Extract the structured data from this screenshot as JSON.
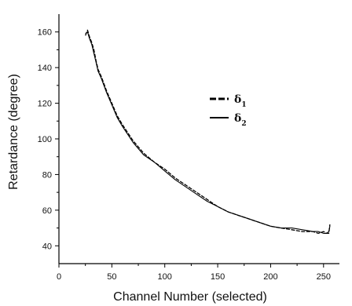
{
  "chart_data": {
    "type": "line",
    "title": "",
    "xlabel": "Channel Number (selected)",
    "ylabel": "Retardance (degree)",
    "xlim": [
      0,
      265
    ],
    "ylim": [
      30,
      170
    ],
    "xticks": [
      0,
      50,
      100,
      150,
      200,
      250
    ],
    "yticks": [
      40,
      60,
      80,
      100,
      120,
      140,
      160
    ],
    "grid": false,
    "legend_position": "upper-right",
    "series": [
      {
        "name": "δ1",
        "symbol": "δ",
        "subscript": "1",
        "style": "dashed",
        "x": [
          25,
          27,
          29,
          31,
          33,
          35,
          37,
          40,
          45,
          50,
          55,
          60,
          70,
          80,
          90,
          100,
          110,
          120,
          130,
          140,
          150,
          160,
          170,
          180,
          190,
          200,
          210,
          220,
          230,
          240,
          245,
          250,
          253,
          255,
          256
        ],
        "y": [
          158,
          161,
          157,
          154,
          150,
          144,
          139,
          135,
          127,
          120,
          113,
          108,
          99,
          92,
          87,
          83,
          78,
          74,
          70,
          66,
          62,
          59,
          57,
          55,
          53,
          51,
          50,
          49,
          48,
          48,
          47,
          48,
          47,
          47,
          52
        ]
      },
      {
        "name": "δ2",
        "symbol": "δ",
        "subscript": "2",
        "style": "solid",
        "x": [
          25,
          27,
          29,
          31,
          33,
          35,
          37,
          40,
          45,
          50,
          55,
          60,
          70,
          80,
          90,
          100,
          110,
          120,
          130,
          140,
          150,
          160,
          170,
          180,
          190,
          200,
          210,
          220,
          230,
          240,
          245,
          250,
          253,
          255,
          256
        ],
        "y": [
          159,
          160,
          156,
          153,
          148,
          143,
          138,
          134,
          126,
          119,
          112,
          107,
          98,
          91,
          87,
          82,
          77,
          73,
          69,
          65,
          62,
          59,
          57,
          55,
          53,
          51,
          50,
          50,
          49,
          48,
          48,
          47,
          47,
          48,
          51
        ]
      }
    ]
  }
}
